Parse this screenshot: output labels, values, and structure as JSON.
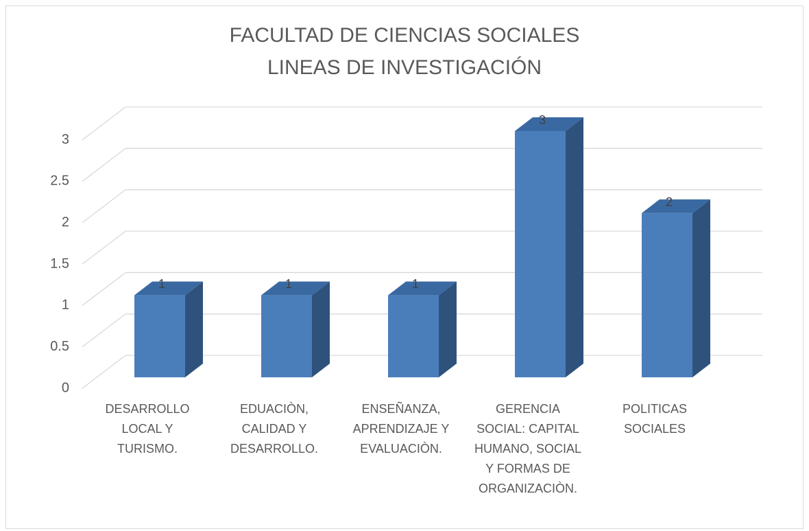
{
  "chart_data": {
    "type": "bar3d",
    "title": [
      "FACULTAD DE CIENCIAS SOCIALES",
      "LINEAS DE INVESTIGACIÓN"
    ],
    "categories": [
      "DESARROLLO LOCAL Y TURISMO.",
      "EDUACIÒN, CALIDAD Y DESARROLLO.",
      "ENSEÑANZA, APRENDIZAJE Y EVALUACIÒN.",
      "GERENCIA SOCIAL: CAPITAL HUMANO, SOCIAL Y FORMAS DE ORGANIZACIÒN.",
      "POLITICAS SOCIALES"
    ],
    "values": [
      1,
      1,
      1,
      3,
      2
    ],
    "color": "#4a7ebb",
    "ylim": [
      0,
      3
    ],
    "yticks": [
      0,
      0.5,
      1,
      1.5,
      2,
      2.5,
      3
    ],
    "grid": true
  }
}
